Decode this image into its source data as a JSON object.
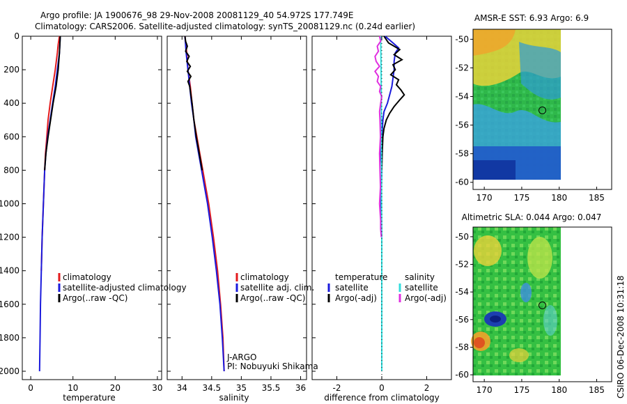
{
  "header": {
    "line1": "Argo profile: JA 1900676_98 29-Nov-2008 20081129_40 54.972S 177.749E",
    "line2": "Climatology: CARS2006. Satellite-adjusted climatology: synTS_20081129.nc (0.24d earlier)"
  },
  "side_stamp": "CSIRO 06-Dec-2008 10:31:18",
  "colors": {
    "red": "#e31a1c",
    "blue": "#1a1adc",
    "black": "#000000",
    "cyan": "#33dddd",
    "magenta": "#e030e0"
  },
  "chart_data": [
    {
      "type": "line",
      "id": "temperature",
      "xlabel": "temperature",
      "ylabel": "",
      "xlim": [
        -2,
        31
      ],
      "ylim": [
        2050,
        0
      ],
      "xticks": [
        0,
        10,
        20,
        30
      ],
      "yticks": [
        0,
        200,
        400,
        600,
        800,
        1000,
        1200,
        1400,
        1600,
        1800,
        2000
      ],
      "legend": {
        "placement": "lower-middle",
        "entries": [
          "climatology",
          "satellite-adjusted climatology",
          "Argo(..raw -QC)"
        ]
      },
      "series": [
        {
          "name": "climatology",
          "color": "red",
          "depth": [
            0,
            50,
            100,
            200,
            300,
            400,
            500,
            600,
            700,
            800,
            1000,
            1200,
            1400
          ],
          "value": [
            6.8,
            6.5,
            6.3,
            5.8,
            5.2,
            4.6,
            4.1,
            3.8,
            3.5,
            3.3,
            3.0,
            2.7,
            2.5
          ]
        },
        {
          "name": "satellite-adjusted climatology",
          "color": "blue",
          "depth": [
            0,
            50,
            100,
            200,
            300,
            400,
            500,
            600,
            700,
            800,
            1000,
            1200,
            1400,
            1600,
            1800,
            2000
          ],
          "value": [
            7.0,
            6.9,
            6.8,
            6.3,
            5.8,
            5.2,
            4.6,
            4.0,
            3.6,
            3.3,
            3.0,
            2.7,
            2.5,
            2.3,
            2.2,
            2.1
          ]
        },
        {
          "name": "Argo(..raw -QC)",
          "color": "black",
          "depth": [
            0,
            50,
            100,
            200,
            300,
            400,
            500,
            600,
            700,
            800
          ],
          "value": [
            7.0,
            6.9,
            6.8,
            6.5,
            6.0,
            5.3,
            4.7,
            4.1,
            3.6,
            3.3
          ]
        }
      ]
    },
    {
      "type": "line",
      "id": "salinity",
      "xlabel": "salinity",
      "ylabel": "",
      "xlim": [
        33.75,
        36.1
      ],
      "ylim": [
        2050,
        0
      ],
      "xticks": [
        34,
        34.5,
        35,
        35.5,
        36
      ],
      "legend": {
        "placement": "lower-middle",
        "entries": [
          "climatology",
          "satellite adj. clim.",
          "Argo(..raw -QC)"
        ]
      },
      "note": [
        "J-ARGO",
        "PI: Nobuyuki Shikama"
      ],
      "series": [
        {
          "name": "climatology",
          "color": "red",
          "depth": [
            0,
            100,
            200,
            300,
            400,
            500,
            600,
            700,
            800,
            900,
            1000,
            1200,
            1400,
            1600,
            1800,
            2000
          ],
          "value": [
            34.05,
            34.08,
            34.1,
            34.14,
            34.17,
            34.2,
            34.25,
            34.3,
            34.35,
            34.4,
            34.45,
            34.53,
            34.6,
            34.65,
            34.69,
            34.71
          ]
        },
        {
          "name": "satellite adj. clim.",
          "color": "blue",
          "depth": [
            0,
            100,
            200,
            300,
            400,
            500,
            600,
            700,
            800,
            900,
            1000,
            1200,
            1400,
            1600,
            1800,
            2000
          ],
          "value": [
            34.05,
            34.07,
            34.1,
            34.13,
            34.16,
            34.2,
            34.23,
            34.28,
            34.33,
            34.38,
            34.43,
            34.51,
            34.58,
            34.64,
            34.68,
            34.71
          ]
        },
        {
          "name": "Argo(..raw -QC)",
          "color": "black",
          "depth": [
            0,
            30,
            60,
            90,
            120,
            150,
            180,
            210,
            240,
            270,
            300,
            350,
            400,
            500,
            600,
            700,
            800
          ],
          "value": [
            34.05,
            34.06,
            34.09,
            34.06,
            34.12,
            34.08,
            34.14,
            34.09,
            34.15,
            34.1,
            34.13,
            34.15,
            34.17,
            34.2,
            34.24,
            34.29,
            34.34
          ]
        }
      ]
    },
    {
      "type": "line",
      "id": "difference",
      "xlabel": "difference from climatology",
      "ylabel": "",
      "xlim": [
        -3.1,
        3.1
      ],
      "ylim": [
        2050,
        0
      ],
      "xticks": [
        -2,
        0,
        2
      ],
      "legend": {
        "placement": "lower-middle",
        "entries": [
          [
            "temperature",
            "satellite",
            "Argo(-adj)"
          ],
          [
            "salinity",
            "satellite",
            "Argo(-adj)"
          ]
        ]
      },
      "series": [
        {
          "name": "temperature satellite",
          "color": "blue",
          "depth": [
            0,
            40,
            70,
            100,
            150,
            200,
            250,
            300,
            350,
            400,
            450,
            500,
            600,
            700,
            800,
            1000,
            1200,
            1500,
            1800,
            2000
          ],
          "value": [
            0.15,
            0.5,
            0.75,
            0.6,
            0.55,
            0.55,
            0.5,
            0.45,
            0.35,
            0.25,
            0.1,
            0.05,
            0.0,
            -0.05,
            0.0,
            -0.03,
            0.0,
            0.0,
            0.0,
            0.0
          ]
        },
        {
          "name": "temperature Argo(-adj)",
          "color": "black",
          "depth": [
            0,
            40,
            80,
            110,
            140,
            170,
            200,
            230,
            260,
            290,
            320,
            350,
            380,
            420,
            460,
            500,
            550,
            600,
            700,
            800
          ],
          "value": [
            0.1,
            0.3,
            0.8,
            0.55,
            0.9,
            0.5,
            0.6,
            0.4,
            0.75,
            0.65,
            0.85,
            1.0,
            0.8,
            0.55,
            0.35,
            0.2,
            0.1,
            0.05,
            0.02,
            0.0
          ]
        },
        {
          "name": "salinity satellite",
          "color": "cyan",
          "depth": [
            0,
            100,
            200,
            400,
            600,
            800,
            1000,
            1200,
            1500,
            1800,
            2000
          ],
          "value": [
            -0.05,
            -0.04,
            -0.03,
            -0.02,
            -0.02,
            -0.01,
            -0.01,
            0.0,
            0.0,
            0.0,
            0.0
          ]
        },
        {
          "name": "salinity Argo(-adj)",
          "color": "magenta",
          "depth": [
            0,
            30,
            60,
            90,
            120,
            150,
            180,
            210,
            240,
            270,
            300,
            330,
            360,
            400,
            450,
            500,
            600,
            700,
            800,
            900,
            1000,
            1100,
            1150,
            1200
          ],
          "value": [
            -0.1,
            -0.05,
            -0.2,
            -0.15,
            -0.3,
            -0.25,
            -0.1,
            -0.3,
            -0.15,
            -0.2,
            -0.05,
            -0.1,
            0.0,
            -0.05,
            -0.1,
            -0.08,
            -0.06,
            -0.1,
            -0.08,
            -0.06,
            -0.1,
            -0.05,
            -0.05,
            -0.02
          ]
        }
      ]
    },
    {
      "type": "heatmap",
      "id": "sst-map",
      "title": "AMSR-E SST: 6.93 Argo: 6.9",
      "xlim": [
        168.5,
        187
      ],
      "ylim": [
        -60.5,
        -49.3
      ],
      "xticks": [
        170,
        175,
        180,
        185
      ],
      "yticks": [
        -50,
        -52,
        -54,
        -56,
        -58,
        -60
      ],
      "data_extent_lon": [
        168.5,
        180
      ],
      "marker": {
        "lon": 177.75,
        "lat": -54.97
      }
    },
    {
      "type": "heatmap",
      "id": "sla-map",
      "title": "Altimetric SLA: 0.044 Argo: 0.047",
      "xlim": [
        168.5,
        187
      ],
      "ylim": [
        -60.5,
        -49.3
      ],
      "xticks": [
        170,
        175,
        180,
        185
      ],
      "yticks": [
        -50,
        -52,
        -54,
        -56,
        -58,
        -60
      ],
      "data_extent_lon": [
        168.5,
        180
      ],
      "marker": {
        "lon": 177.75,
        "lat": -54.97
      }
    }
  ]
}
